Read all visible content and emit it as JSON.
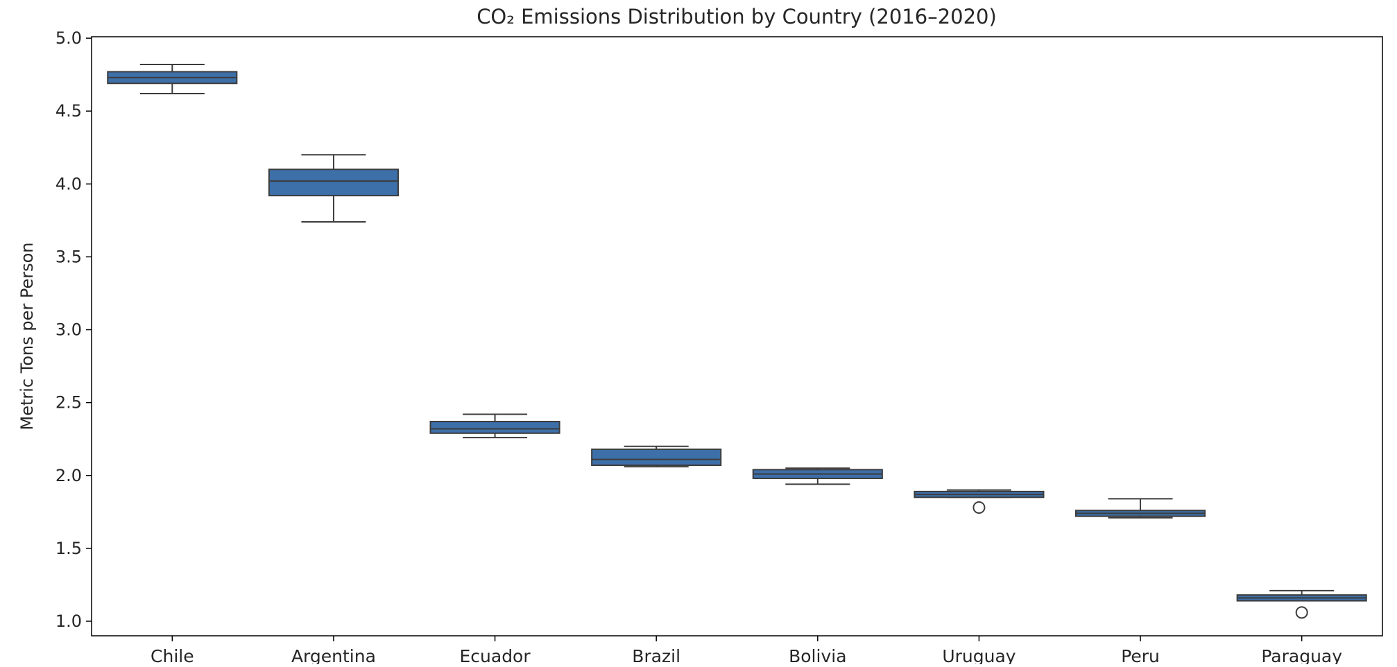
{
  "chart_data": {
    "type": "box",
    "title": "CO₂ Emissions Distribution by Country (2016–2020)",
    "xlabel": "",
    "ylabel": "Metric Tons per Person",
    "ylim": [
      0.9,
      5.01
    ],
    "yticks": [
      "1.0",
      "1.5",
      "2.0",
      "2.5",
      "3.0",
      "3.5",
      "4.0",
      "4.5",
      "5.0"
    ],
    "grid": false,
    "box_color": "#3d6fa8",
    "edge_color": "#3c3c3c",
    "categories": [
      "Chile",
      "Argentina",
      "Ecuador",
      "Brazil",
      "Bolivia",
      "Uruguay",
      "Peru",
      "Paraguay"
    ],
    "boxes": [
      {
        "category": "Chile",
        "whisker_low": 4.62,
        "q1": 4.69,
        "median": 4.73,
        "q3": 4.77,
        "whisker_high": 4.82,
        "outliers": []
      },
      {
        "category": "Argentina",
        "whisker_low": 3.74,
        "q1": 3.92,
        "median": 4.02,
        "q3": 4.1,
        "whisker_high": 4.2,
        "outliers": []
      },
      {
        "category": "Ecuador",
        "whisker_low": 2.26,
        "q1": 2.29,
        "median": 2.32,
        "q3": 2.37,
        "whisker_high": 2.42,
        "outliers": []
      },
      {
        "category": "Brazil",
        "whisker_low": 2.06,
        "q1": 2.07,
        "median": 2.11,
        "q3": 2.18,
        "whisker_high": 2.2,
        "outliers": []
      },
      {
        "category": "Bolivia",
        "whisker_low": 1.94,
        "q1": 1.98,
        "median": 2.01,
        "q3": 2.04,
        "whisker_high": 2.05,
        "outliers": []
      },
      {
        "category": "Uruguay",
        "whisker_low": 1.85,
        "q1": 1.85,
        "median": 1.87,
        "q3": 1.89,
        "whisker_high": 1.9,
        "outliers": [
          1.78
        ]
      },
      {
        "category": "Peru",
        "whisker_low": 1.71,
        "q1": 1.72,
        "median": 1.74,
        "q3": 1.76,
        "whisker_high": 1.84,
        "outliers": []
      },
      {
        "category": "Paraguay",
        "whisker_low": 1.14,
        "q1": 1.14,
        "median": 1.16,
        "q3": 1.18,
        "whisker_high": 1.21,
        "outliers": [
          1.06
        ]
      }
    ]
  }
}
